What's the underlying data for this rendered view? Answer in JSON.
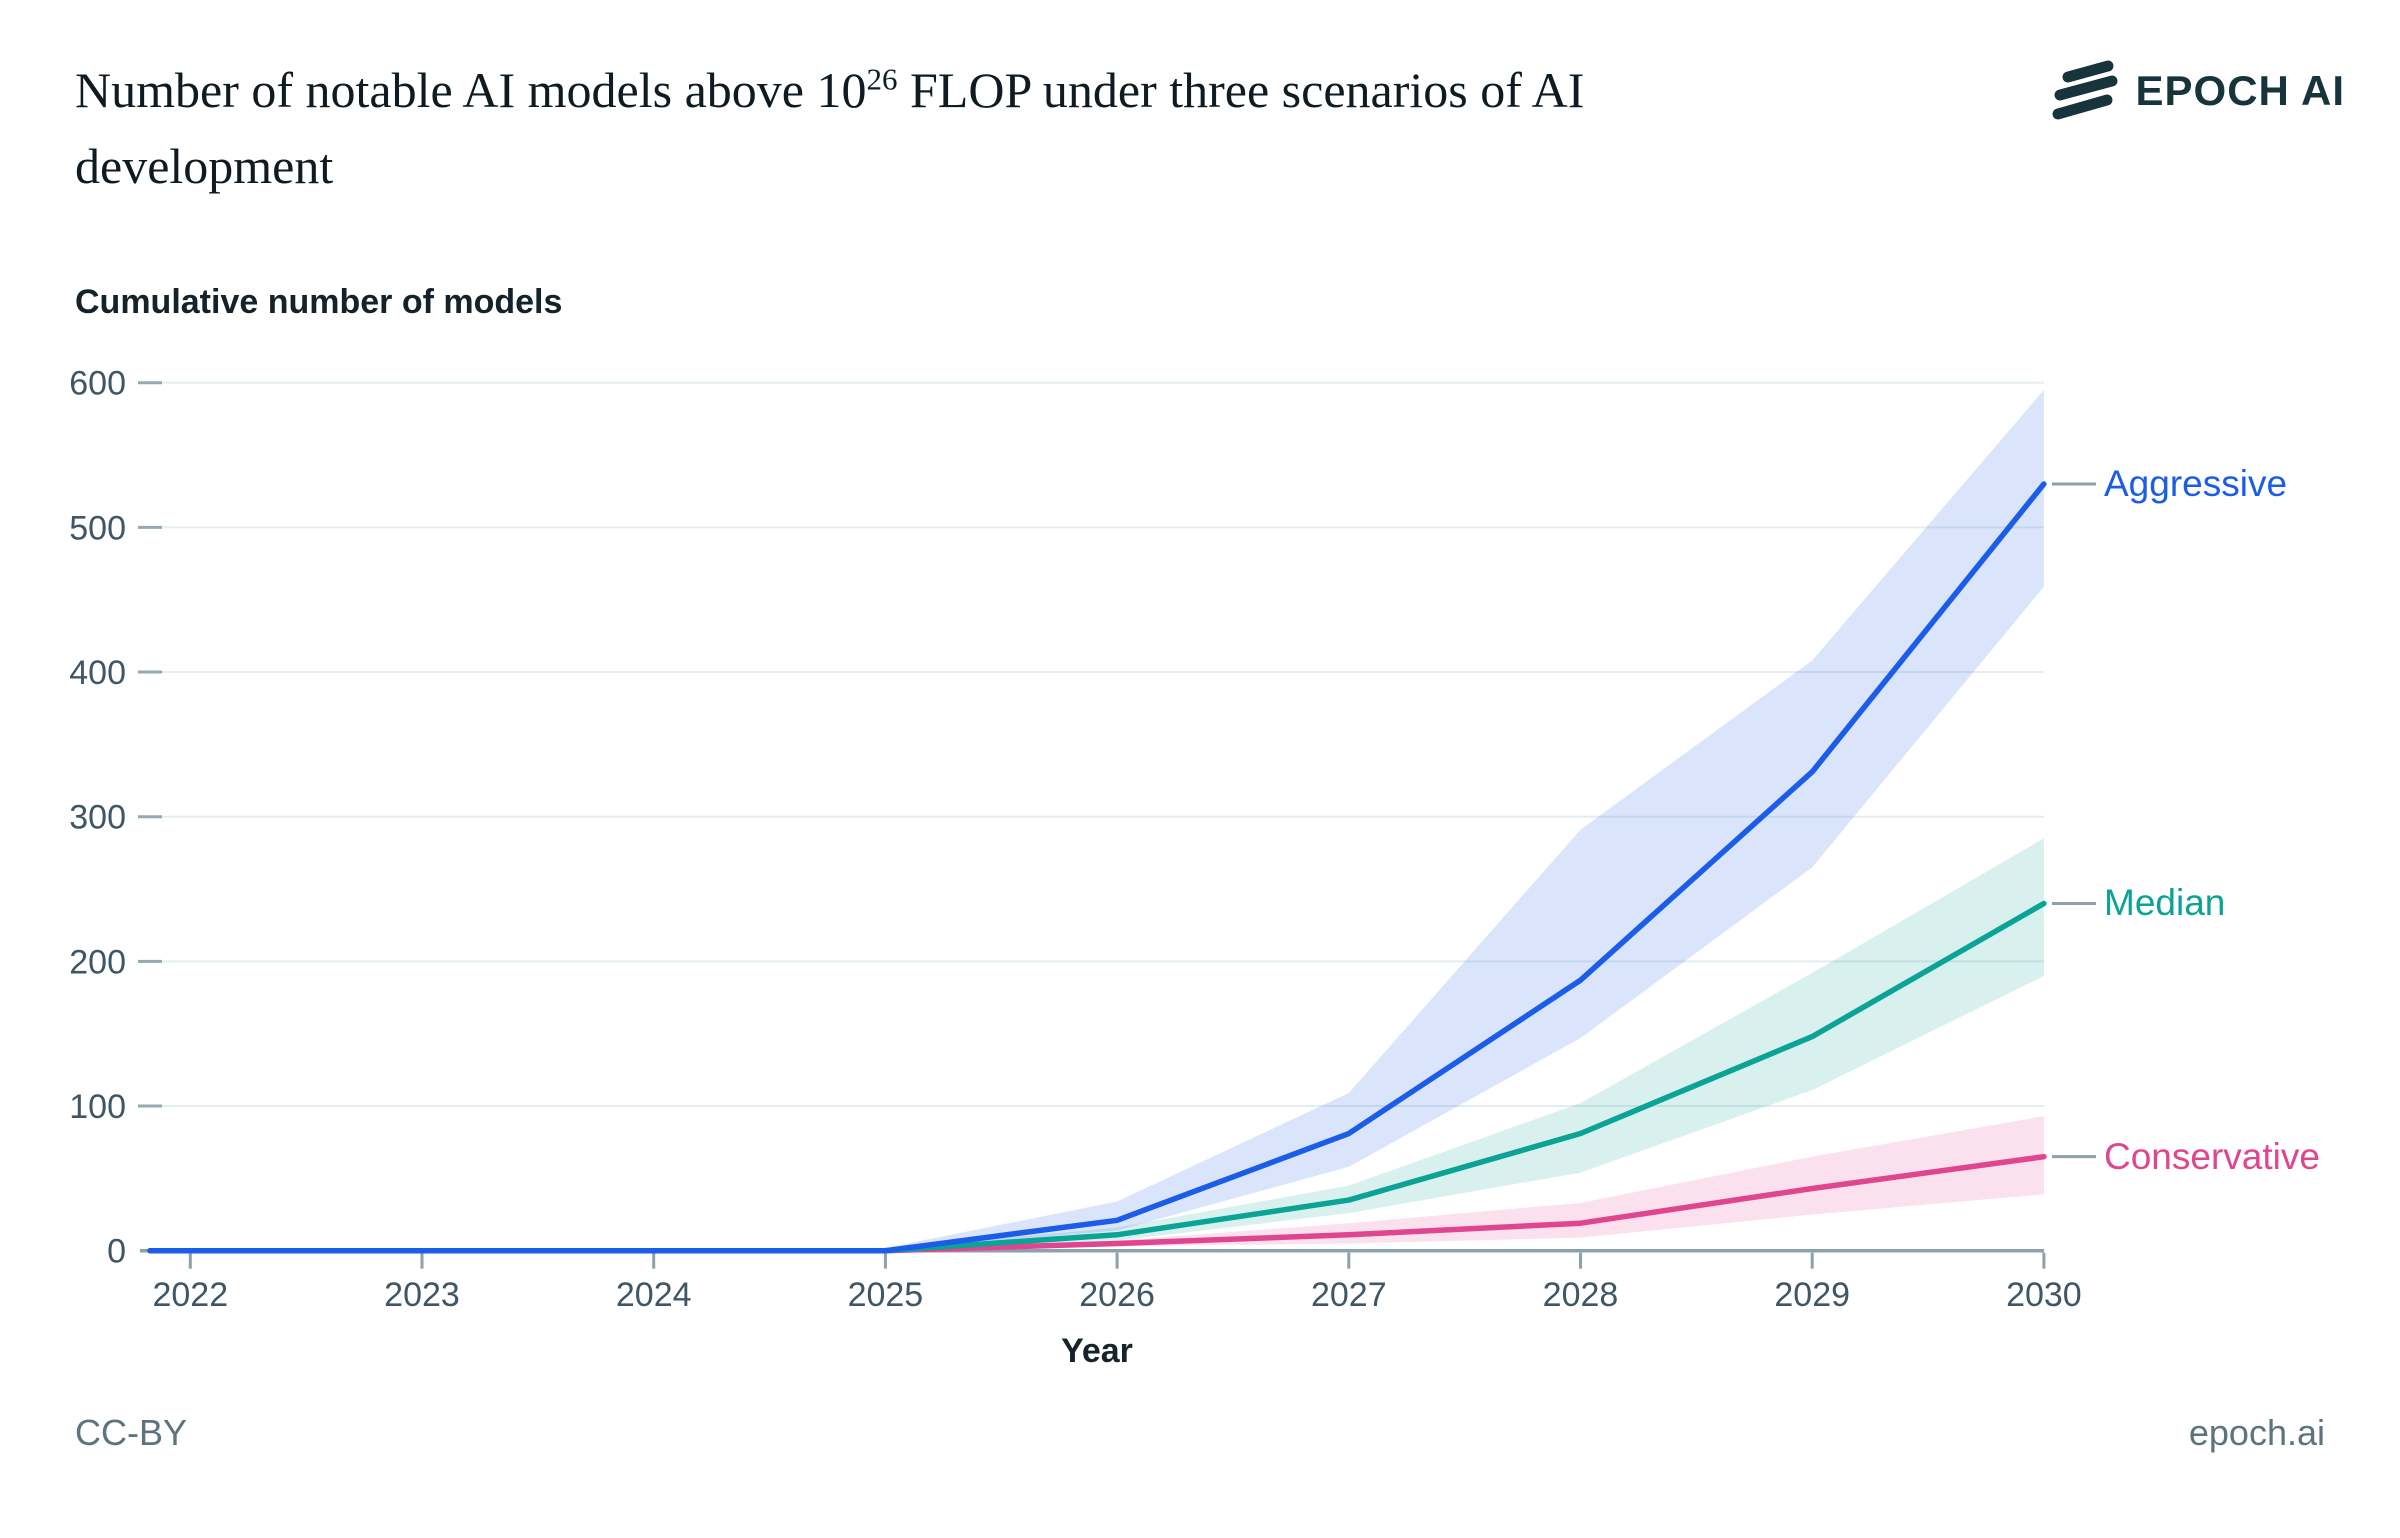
{
  "title": {
    "part1": "Number of notable AI models above 10",
    "sup": "26",
    "part2": " FLOP under three scenarios of AI",
    "line2": "development"
  },
  "logo": {
    "text": "EPOCH AI",
    "color": "#17333b"
  },
  "footer": {
    "license": "CC-BY",
    "site": "epoch.ai"
  },
  "chart_data": {
    "type": "line",
    "title": "Number of notable AI models above 10^26 FLOP under three scenarios of AI development",
    "ylabel": "Cumulative number of models",
    "xlabel": "Year",
    "ylim": [
      0,
      600
    ],
    "xlim": [
      2022,
      2030
    ],
    "grid": "horizontal",
    "legend_position": "right-of-line-ends",
    "yticks": [
      0,
      100,
      200,
      300,
      400,
      500,
      600
    ],
    "x": [
      2022,
      2023,
      2024,
      2025,
      2026,
      2027,
      2028,
      2029,
      2030
    ],
    "series": [
      {
        "name": "Conservative",
        "color": "#e0458f",
        "band_color": "rgba(224,69,143,0.16)",
        "values": [
          0,
          0,
          0,
          0,
          5,
          11,
          19,
          43,
          65
        ],
        "band_low": [
          0,
          0,
          0,
          0,
          3,
          5,
          9,
          25,
          39
        ],
        "band_high": [
          0,
          0,
          0,
          1,
          7,
          19,
          33,
          65,
          93
        ]
      },
      {
        "name": "Median",
        "color": "#0aa396",
        "band_color": "rgba(10,163,150,0.16)",
        "values": [
          0,
          0,
          0,
          0,
          11,
          35,
          81,
          148,
          240
        ],
        "band_low": [
          0,
          0,
          0,
          0,
          7,
          26,
          54,
          111,
          190
        ],
        "band_high": [
          0,
          0,
          0,
          1,
          16,
          45,
          102,
          192,
          285
        ]
      },
      {
        "name": "Aggressive",
        "color": "#1b5ce8",
        "band_color": "rgba(27,92,232,0.16)",
        "values": [
          0,
          0,
          0,
          0,
          21,
          81,
          187,
          331,
          530
        ],
        "band_low": [
          0,
          0,
          0,
          0,
          14,
          58,
          147,
          265,
          459
        ],
        "band_high": [
          0,
          0,
          0,
          2,
          34,
          109,
          291,
          408,
          595
        ]
      }
    ],
    "axis_color": "#8ba1ab",
    "gridline_color": "#e4edef",
    "tick_label_color": "#3e5665"
  }
}
